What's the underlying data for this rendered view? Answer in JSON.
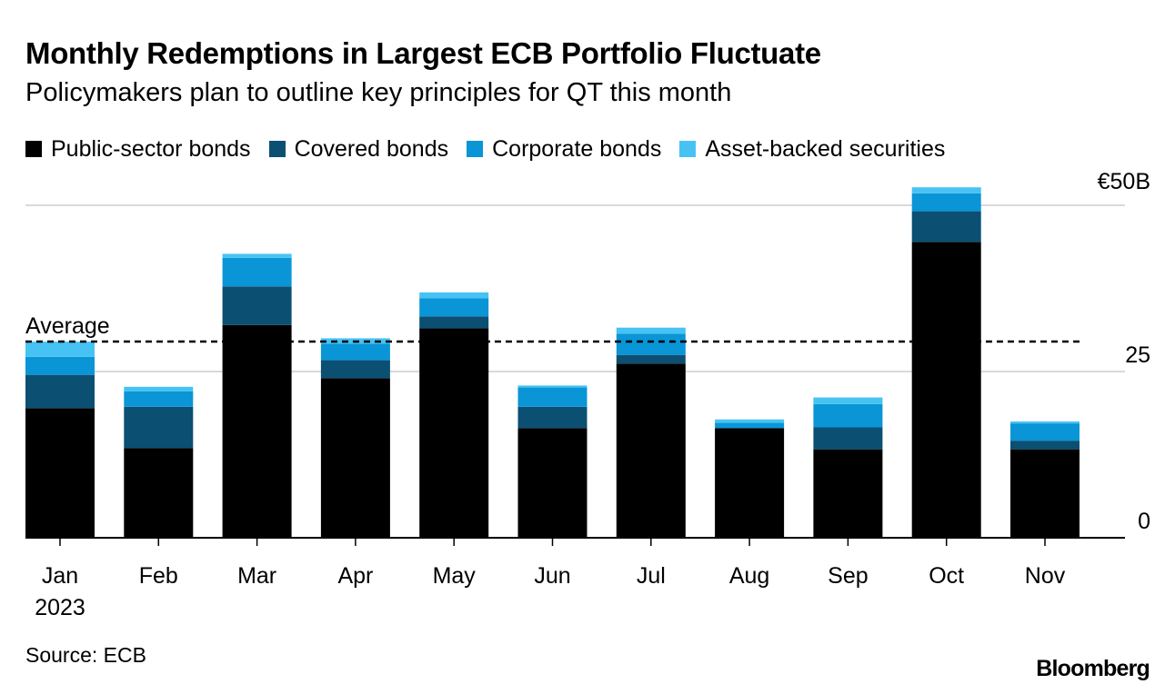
{
  "title": "Monthly Redemptions in Largest ECB Portfolio Fluctuate",
  "subtitle": "Policymakers plan to outline key principles for QT this month",
  "source": "Source: ECB",
  "brand": "Bloomberg",
  "chart_data": {
    "type": "bar",
    "stacked": true,
    "categories": [
      "Jan",
      "Feb",
      "Mar",
      "Apr",
      "May",
      "Jun",
      "Jul",
      "Aug",
      "Sep",
      "Oct",
      "Nov"
    ],
    "year_label": "2023",
    "series": [
      {
        "name": "Public-sector bonds",
        "color": "#000000",
        "values": [
          19.5,
          13.5,
          32.0,
          24.0,
          31.5,
          16.5,
          26.2,
          16.5,
          13.3,
          44.5,
          13.3
        ]
      },
      {
        "name": "Covered bonds",
        "color": "#0b4f73",
        "values": [
          5.0,
          6.2,
          5.8,
          2.7,
          1.8,
          3.2,
          1.3,
          0.0,
          3.3,
          4.6,
          1.3
        ]
      },
      {
        "name": "Corporate bonds",
        "color": "#0a95d6",
        "values": [
          2.7,
          2.3,
          4.3,
          2.5,
          2.7,
          2.9,
          3.2,
          0.8,
          3.5,
          2.7,
          2.6
        ]
      },
      {
        "name": "Asset-backed securities",
        "color": "#46c3f3",
        "values": [
          2.3,
          0.7,
          0.6,
          0.8,
          0.9,
          0.3,
          0.9,
          0.5,
          1.0,
          0.9,
          0.3
        ]
      }
    ],
    "ylim": [
      0,
      50
    ],
    "yticks": [
      0,
      25,
      50
    ],
    "ytick_labels": [
      "0",
      "25",
      "€50B"
    ],
    "y_axis_side": "right",
    "average": {
      "label": "Average",
      "value": 29.5
    }
  }
}
